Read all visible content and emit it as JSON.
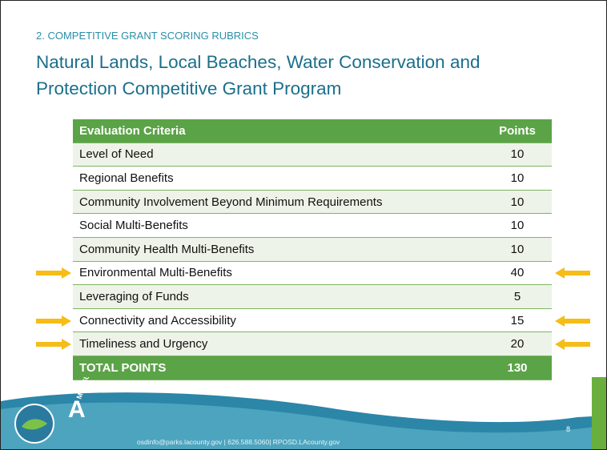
{
  "header": {
    "section": "2. COMPETITIVE GRANT SCORING RUBRICS",
    "title": "Natural Lands, Local Beaches, Water Conservation and Protection Competitive Grant Program"
  },
  "table": {
    "columns": [
      "Evaluation Criteria",
      "Points"
    ],
    "rows": [
      {
        "criterion": "Level of Need",
        "points": 10,
        "highlighted": false
      },
      {
        "criterion": "Regional Benefits",
        "points": 10,
        "highlighted": false
      },
      {
        "criterion": "Community Involvement Beyond Minimum Requirements",
        "points": 10,
        "highlighted": false
      },
      {
        "criterion": "Social Multi-Benefits",
        "points": 10,
        "highlighted": false
      },
      {
        "criterion": "Community Health Multi-Benefits",
        "points": 10,
        "highlighted": false
      },
      {
        "criterion": "Environmental Multi-Benefits",
        "points": 40,
        "highlighted": true
      },
      {
        "criterion": "Leveraging of Funds",
        "points": 5,
        "highlighted": false
      },
      {
        "criterion": "Connectivity and Accessibility",
        "points": 15,
        "highlighted": true
      },
      {
        "criterion": "Timeliness and Urgency",
        "points": 20,
        "highlighted": true
      }
    ],
    "total": {
      "label": "TOTAL POINTS",
      "points": 130
    }
  },
  "footer": {
    "logo": "MEASURE",
    "logo_letter": "A",
    "contact": "osdinfo@parks.lacounty.gov | 626.588.5060| RPOSD.LAcounty.gov",
    "page": 8
  }
}
